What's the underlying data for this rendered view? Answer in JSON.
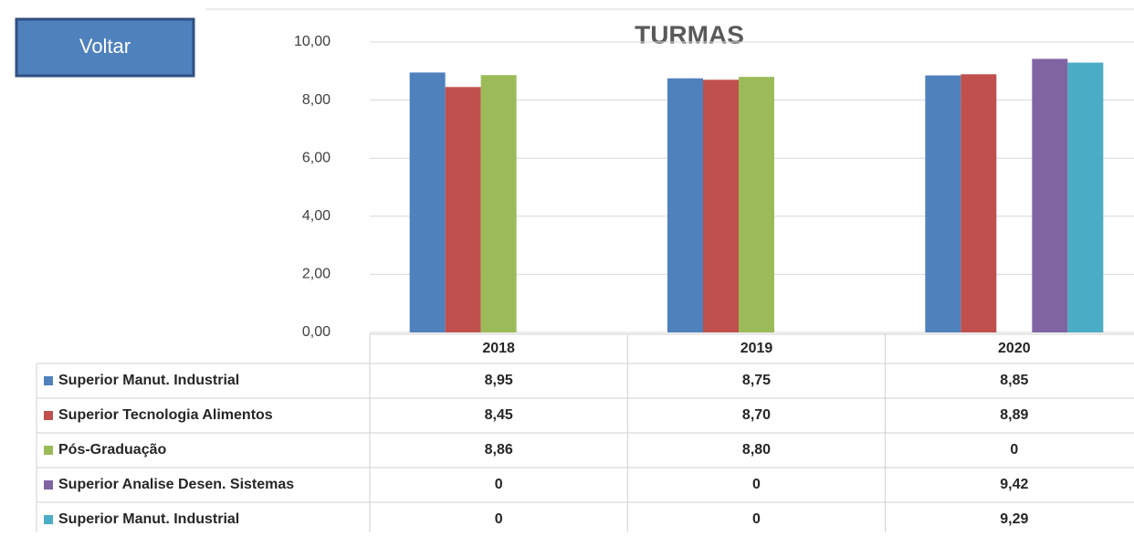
{
  "button": {
    "label": "Voltar"
  },
  "chart_data": {
    "type": "bar",
    "title": "TURMAS",
    "categories": [
      "2018",
      "2019",
      "2020"
    ],
    "series": [
      {
        "name": "Superior Manut. Industrial",
        "color": "#4f81bd",
        "values": [
          8.95,
          8.75,
          8.85
        ],
        "value_labels": [
          "8,95",
          "8,75",
          "8,85"
        ]
      },
      {
        "name": "Superior Tecnologia Alimentos",
        "color": "#c0504d",
        "values": [
          8.45,
          8.7,
          8.89
        ],
        "value_labels": [
          "8,45",
          "8,70",
          "8,89"
        ]
      },
      {
        "name": "Pós-Graduação",
        "color": "#9bbb59",
        "values": [
          8.86,
          8.8,
          0
        ],
        "value_labels": [
          "8,86",
          "8,80",
          "0"
        ]
      },
      {
        "name": "Superior Analise Desen. Sistemas",
        "color": "#8064a2",
        "values": [
          0,
          0,
          9.42
        ],
        "value_labels": [
          "0",
          "0",
          "9,42"
        ]
      },
      {
        "name": "Superior Manut. Industrial",
        "color": "#4bacc6",
        "values": [
          0,
          0,
          9.29
        ],
        "value_labels": [
          "0",
          "0",
          "9,29"
        ]
      }
    ],
    "ylim": [
      0,
      10
    ],
    "yticks": [
      {
        "value": 0,
        "label": "0,00"
      },
      {
        "value": 2,
        "label": "2,00"
      },
      {
        "value": 4,
        "label": "4,00"
      },
      {
        "value": 6,
        "label": "6,00"
      },
      {
        "value": 8,
        "label": "8,00"
      },
      {
        "value": 10,
        "label": "10,00"
      }
    ],
    "grid": true
  }
}
